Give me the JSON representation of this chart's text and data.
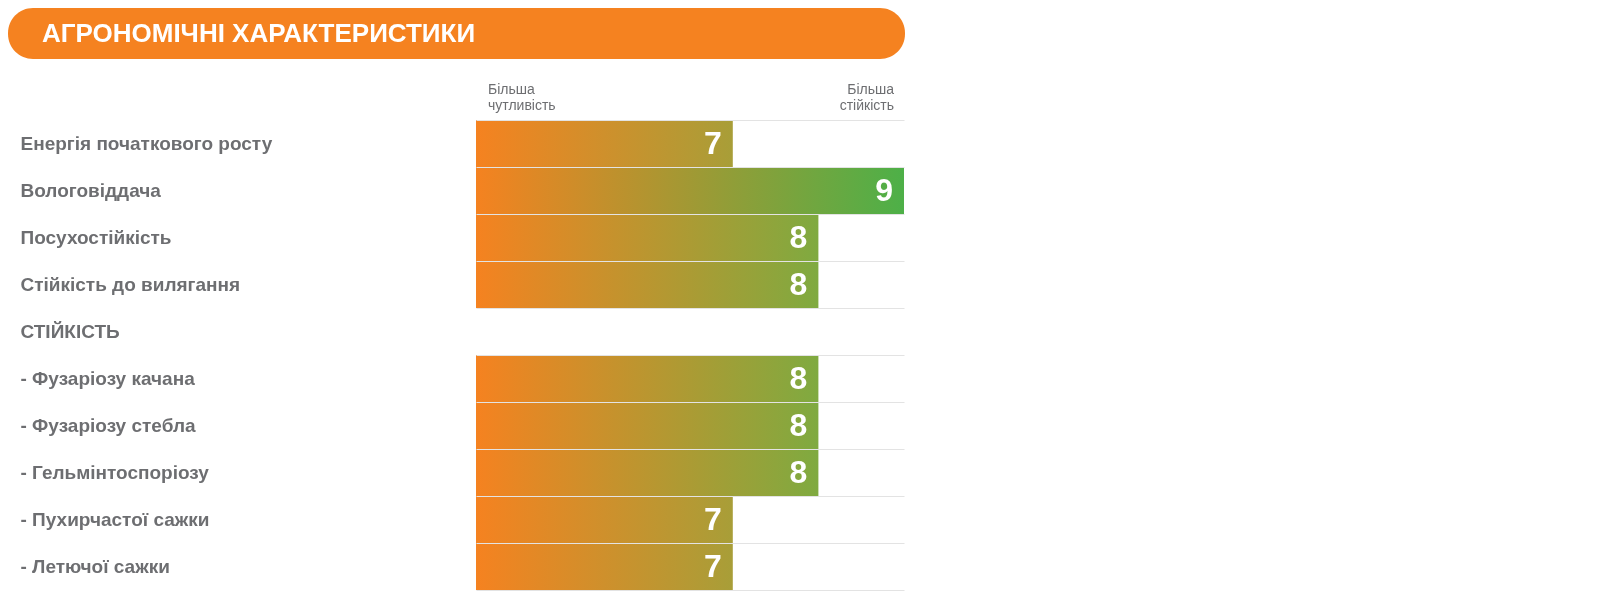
{
  "chart_data": {
    "type": "bar",
    "orientation": "horizontal",
    "title": "АГРОНОМІЧНІ ХАРАКТЕРИСТИКИ",
    "annotations": [
      "Більша чутливість",
      "Більша стійкість"
    ],
    "categories": [
      "Енергія початкового росту",
      "Вологовіддача",
      "Посухостійкість",
      "Стійкість до вилягання",
      "СТІЙКІСТЬ",
      "- Фузаріозу качана",
      "- Фузаріозу стебла",
      "- Гельмінтоспоріозу",
      "- Пухирчастої сажки",
      "- Летючої сажки"
    ],
    "values": [
      7,
      9,
      8,
      8,
      null,
      8,
      8,
      8,
      7,
      7
    ],
    "colors": [
      "#a89e38",
      "#4db048",
      "#7faa40",
      "#7faa40",
      null,
      "#7faa40",
      "#7faa40",
      "#7faa40",
      "#a89e38",
      "#a89e38"
    ],
    "xlim": [
      4,
      9
    ],
    "data_labels": true,
    "grid": "y",
    "tick_labels": "y"
  }
}
